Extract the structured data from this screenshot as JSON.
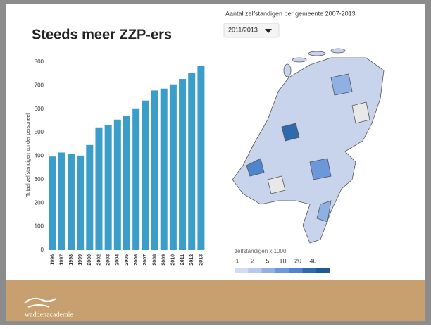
{
  "slide": {
    "title": "Steeds meer ZZP-ers",
    "logo": "waddenacademie"
  },
  "chart_data": {
    "type": "bar",
    "ylabel": "Totaal zelfstandigen zonder personeel",
    "categories": [
      "1996",
      "1997",
      "1998",
      "1999",
      "2000",
      "2002",
      "2003",
      "2004",
      "2005",
      "2006",
      "2007",
      "2008",
      "2009",
      "2010",
      "2011",
      "2012",
      "2013"
    ],
    "values": [
      398,
      415,
      408,
      402,
      447,
      522,
      533,
      555,
      570,
      600,
      636,
      679,
      687,
      705,
      728,
      752,
      785
    ],
    "color": "#3a9ec9",
    "ylim": [
      0,
      800
    ],
    "yticks": [
      0,
      100,
      200,
      300,
      400,
      500,
      600,
      700,
      800
    ],
    "grid": false
  },
  "map": {
    "title": "Aantal zelfstandigen per gemeente 2007-2013",
    "dropdown": "2011/2013",
    "legend": {
      "title": "zelfstandigen x 1000",
      "ticks": [
        1,
        2,
        5,
        10,
        20,
        40
      ],
      "colors": [
        "#d3dcf2",
        "#b7c8ec",
        "#8fb0e3",
        "#6b98da",
        "#4d86cf",
        "#2f6aac",
        "#1f5a95"
      ]
    }
  }
}
